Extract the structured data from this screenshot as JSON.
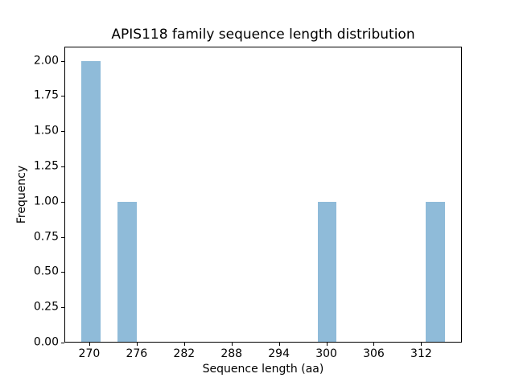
{
  "chart_data": {
    "type": "bar",
    "subtype": "histogram",
    "title": "APIS118 family sequence length distribution",
    "xlabel": "Sequence length (aa)",
    "ylabel": "Frequency",
    "xlim": [
      266.85,
      317.15
    ],
    "ylim": [
      0,
      2.1
    ],
    "xticks": [
      270,
      276,
      282,
      288,
      294,
      300,
      306,
      312
    ],
    "xtick_labels": [
      "270",
      "276",
      "282",
      "288",
      "294",
      "300",
      "306",
      "312"
    ],
    "yticks": [
      0,
      0.25,
      0.5,
      0.75,
      1,
      1.25,
      1.5,
      1.75,
      2
    ],
    "ytick_labels": [
      "0.00",
      "0.25",
      "0.50",
      "0.75",
      "1.00",
      "1.25",
      "1.50",
      "1.75",
      "2.00"
    ],
    "bars": [
      {
        "x_start": 269.0,
        "x_end": 271.4,
        "frequency": 2
      },
      {
        "x_start": 273.6,
        "x_end": 276.0,
        "frequency": 1
      },
      {
        "x_start": 298.9,
        "x_end": 301.3,
        "frequency": 1
      },
      {
        "x_start": 312.6,
        "x_end": 315.0,
        "frequency": 1
      }
    ],
    "bar_color": "#8fbbd9",
    "spine_color": "#000000",
    "text_color": "#000000",
    "grid": false,
    "legend": null
  }
}
